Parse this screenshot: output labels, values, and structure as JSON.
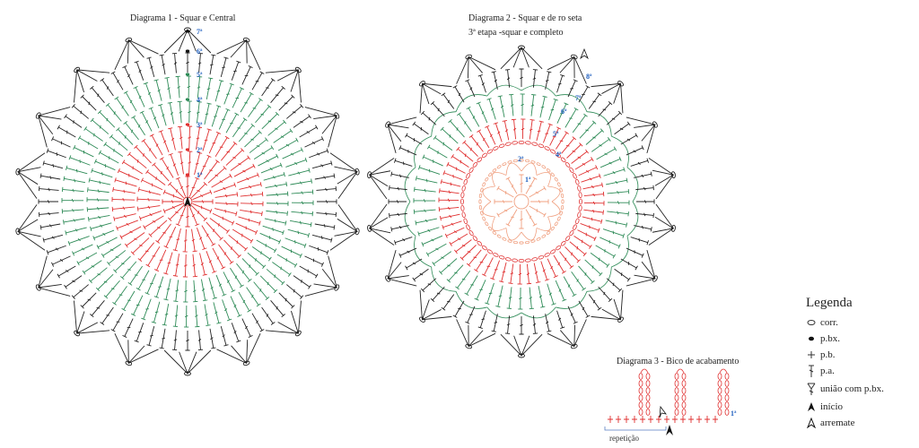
{
  "diagram1": {
    "title": "Diagrama 1  - Squar  e Central",
    "round_labels": [
      "1ª",
      "2ª",
      "3ª",
      "4ª",
      "5ª",
      "6ª",
      "7ª"
    ]
  },
  "diagram2": {
    "title": "Diagrama 2  - Squar  e de ro seta",
    "subtitle": "3ª etapa -squar  e completo",
    "round_labels": [
      "1ª",
      "2ª",
      "4ª",
      "5ª",
      "6ª",
      "7ª",
      "8ª"
    ]
  },
  "diagram3": {
    "title": "Diagrama 3  - Bico de acabamento",
    "repeat_label": "repetição",
    "round_label": "1ª"
  },
  "legend": {
    "title": "Legenda",
    "items": [
      {
        "symbol": "chain-icon",
        "label": "corr."
      },
      {
        "symbol": "slip-stitch-icon",
        "label": "p.bx."
      },
      {
        "symbol": "single-crochet-icon",
        "label": "p.b."
      },
      {
        "symbol": "double-crochet-icon",
        "label": "p.a."
      },
      {
        "symbol": "join-icon",
        "label": "união com p.bx."
      },
      {
        "symbol": "start-arrow-icon",
        "label": "início"
      },
      {
        "symbol": "finish-arrow-icon",
        "label": "arremate"
      }
    ]
  },
  "colors": {
    "red": "#e03030",
    "green": "#2e8b57",
    "black": "#222222",
    "salmon": "#f0a080",
    "label_blue": "#1f5fbf"
  }
}
